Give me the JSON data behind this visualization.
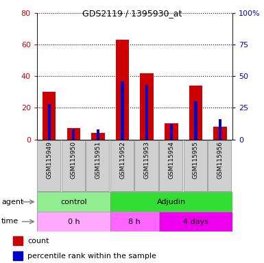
{
  "title": "GDS2119 / 1395930_at",
  "samples": [
    "GSM115949",
    "GSM115950",
    "GSM115951",
    "GSM115952",
    "GSM115953",
    "GSM115954",
    "GSM115955",
    "GSM115956"
  ],
  "count_values": [
    30,
    7,
    4,
    63,
    42,
    10,
    34,
    8
  ],
  "percentile_values": [
    28,
    8,
    8,
    46,
    43,
    12,
    30,
    16
  ],
  "ylim_left": [
    0,
    80
  ],
  "ylim_right": [
    0,
    100
  ],
  "yticks_left": [
    0,
    20,
    40,
    60,
    80
  ],
  "yticks_right": [
    0,
    25,
    50,
    75,
    100
  ],
  "ytick_labels_right": [
    "0",
    "25",
    "50",
    "75",
    "100%"
  ],
  "agent_groups": [
    {
      "label": "control",
      "start": 0,
      "end": 3,
      "color": "#90EE90"
    },
    {
      "label": "Adjudin",
      "start": 3,
      "end": 8,
      "color": "#33DD33"
    }
  ],
  "time_groups": [
    {
      "label": "0 h",
      "start": 0,
      "end": 3,
      "color": "#FFAAFF"
    },
    {
      "label": "8 h",
      "start": 3,
      "end": 5,
      "color": "#FF66FF"
    },
    {
      "label": "4 days",
      "start": 5,
      "end": 8,
      "color": "#EE00EE"
    }
  ],
  "count_color": "#CC0000",
  "percentile_color": "#0000CC",
  "tick_label_color_left": "#CC0000",
  "tick_label_color_right": "#0000CC"
}
